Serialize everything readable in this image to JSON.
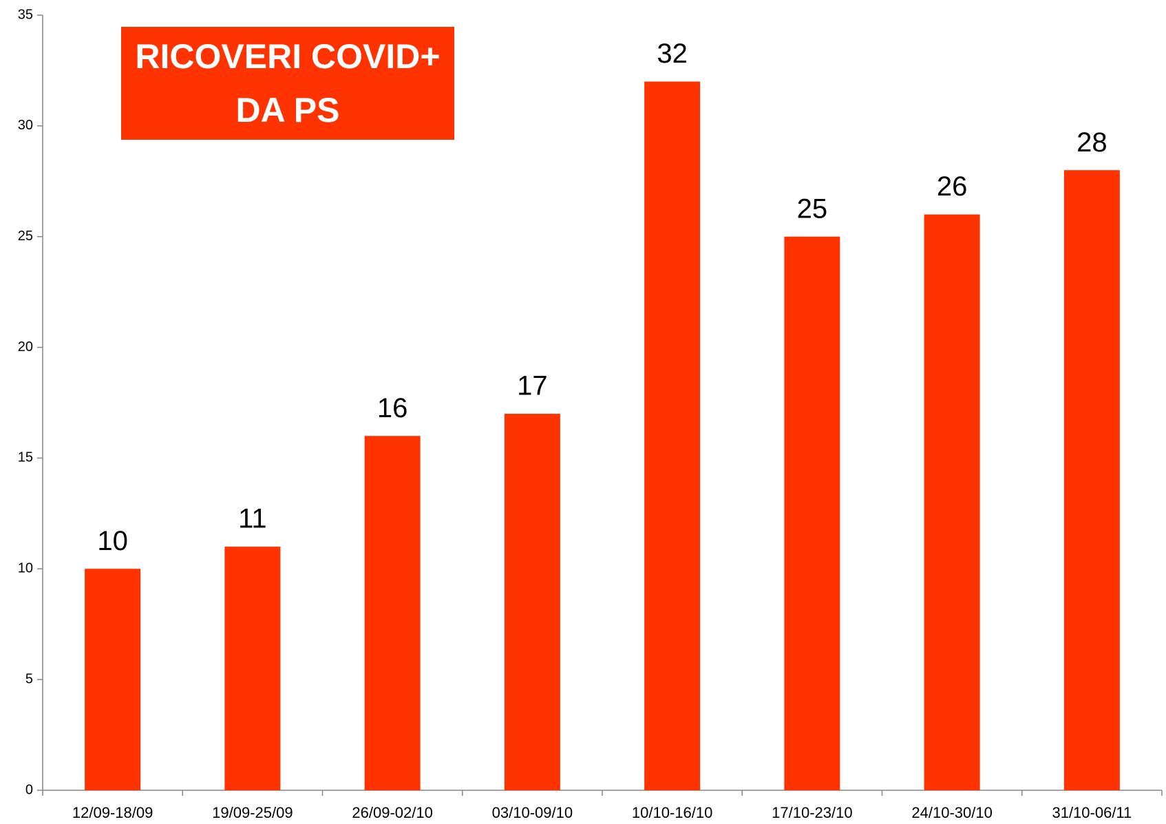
{
  "chart_data": {
    "type": "bar",
    "title": "RICOVERI COVID+\nDA PS",
    "categories": [
      "12/09-18/09",
      "19/09-25/09",
      "26/09-02/10",
      "03/10-09/10",
      "10/10-16/10",
      "17/10-23/10",
      "24/10-30/10",
      "31/10-06/11"
    ],
    "values": [
      10,
      11,
      16,
      17,
      32,
      25,
      26,
      28
    ],
    "color": "#ff3300",
    "ylim": [
      0,
      35
    ],
    "yticks": [
      0,
      5,
      10,
      15,
      20,
      25,
      30,
      35
    ],
    "grid": false
  }
}
